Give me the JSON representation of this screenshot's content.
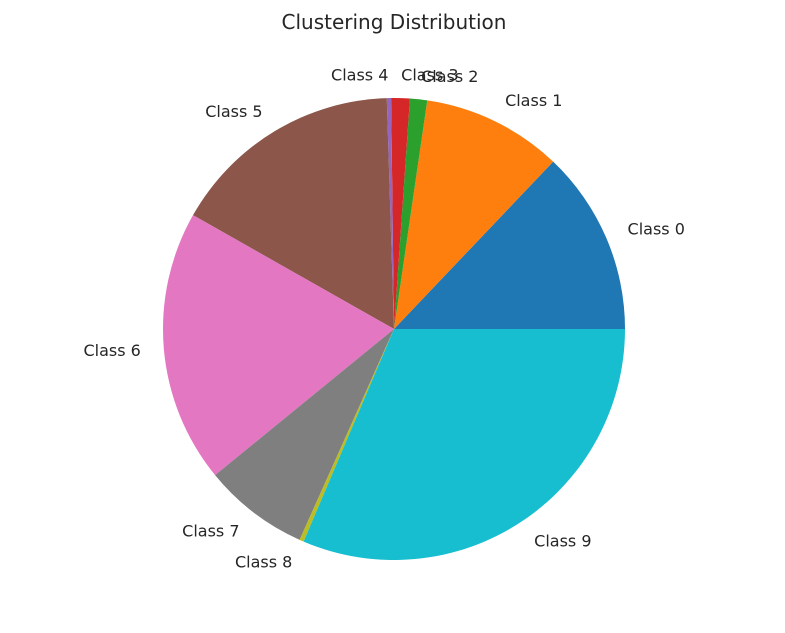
{
  "chart_data": {
    "type": "pie",
    "title": "Clustering Distribution",
    "labels": [
      "Class 0",
      "Class 1",
      "Class 2",
      "Class 3",
      "Class 4",
      "Class 5",
      "Class 6",
      "Class 7",
      "Class 8",
      "Class 9"
    ],
    "values": [
      12.9,
      9.8,
      1.2,
      1.3,
      0.3,
      16.3,
      19.1,
      7.4,
      0.3,
      31.4
    ],
    "colors": [
      "#1f77b4",
      "#ff7f0e",
      "#2ca02c",
      "#d62728",
      "#9467bd",
      "#8c564b",
      "#e377c2",
      "#7f7f7f",
      "#bcbd22",
      "#17becf"
    ],
    "start_angle_deg": 0,
    "direction": "counterclockwise"
  }
}
